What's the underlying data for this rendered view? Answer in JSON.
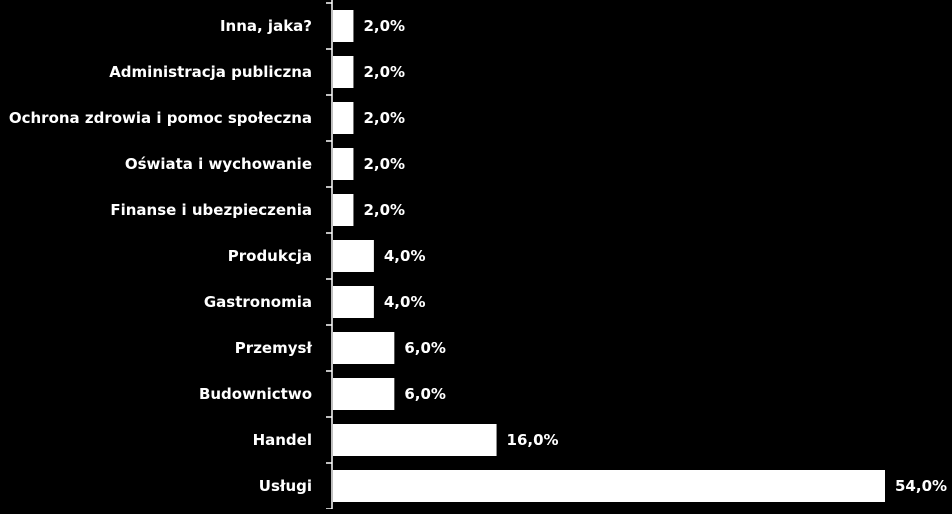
{
  "chart_data": {
    "type": "bar",
    "orientation": "horizontal",
    "categories": [
      "Inna, jaka?",
      "Administracja publiczna",
      "Ochrona zdrowia i pomoc społeczna",
      "Oświata i wychowanie",
      "Finanse i ubezpieczenia",
      "Produkcja",
      "Gastronomia",
      "Przemysł",
      "Budownictwo",
      "Handel",
      "Usługi"
    ],
    "values": [
      2.0,
      2.0,
      2.0,
      2.0,
      2.0,
      4.0,
      4.0,
      6.0,
      6.0,
      16.0,
      54.0
    ],
    "value_labels": [
      "2,0%",
      "2,0%",
      "2,0%",
      "2,0%",
      "2,0%",
      "4,0%",
      "4,0%",
      "6,0%",
      "6,0%",
      "16,0%",
      "54,0%"
    ],
    "title": "",
    "xlabel": "",
    "ylabel": "",
    "xlim": [
      0,
      54
    ],
    "grid": false,
    "legend": "none",
    "colors": {
      "background": "#000000",
      "bar": "#ffffff",
      "axis": "#ffffff",
      "text": "#ffffff"
    }
  }
}
